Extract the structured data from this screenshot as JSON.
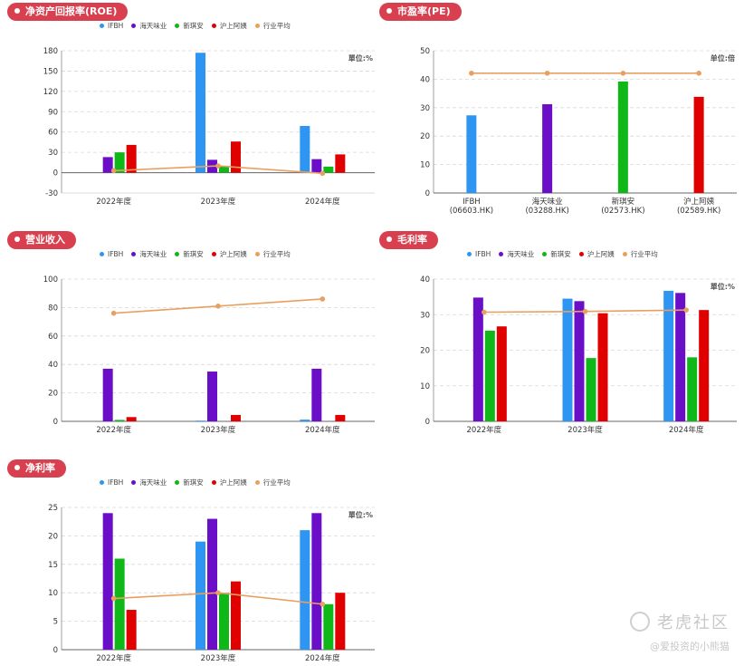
{
  "colors": {
    "IFBH": "#2f95f2",
    "haitian": "#6a0fc7",
    "xinqian": "#10b719",
    "hushang": "#e00000",
    "avg": "#e8a060",
    "title_bg": "#d9404f"
  },
  "legend": [
    "IFBH",
    "海天味业",
    "新琪安",
    "沪上阿姨",
    "行业平均"
  ],
  "watermark": {
    "brand": "老虎社区",
    "user": "@爱投资的小熊猫"
  },
  "chart_data": [
    {
      "id": "roe",
      "type": "bar",
      "title": "净资产回报率(ROE)",
      "unit": "單位:%",
      "categories": [
        "2022年度",
        "2023年度",
        "2024年度"
      ],
      "ylim": [
        -30,
        180
      ],
      "yticks": [
        -30,
        0,
        30,
        60,
        90,
        120,
        150,
        180
      ],
      "series": [
        {
          "name": "IFBH",
          "values": [
            null,
            177,
            69
          ]
        },
        {
          "name": "海天味业",
          "values": [
            23,
            19,
            20
          ]
        },
        {
          "name": "新琪安",
          "values": [
            30,
            10,
            9
          ]
        },
        {
          "name": "沪上阿姨",
          "values": [
            41,
            46,
            27
          ]
        }
      ],
      "line": {
        "name": "行业平均",
        "values": [
          3,
          10,
          -1
        ]
      }
    },
    {
      "id": "pe",
      "type": "bar",
      "title": "市盈率(PE)",
      "unit": "单位:倍",
      "categories": [
        "IFBH\n(06603.HK)",
        "海天味业\n(03288.HK)",
        "新琪安\n(02573.HK)",
        "沪上阿姨\n(02589.HK)"
      ],
      "ylim": [
        0,
        50
      ],
      "yticks": [
        0,
        10,
        20,
        30,
        40,
        50
      ],
      "bars": [
        27.3,
        31.2,
        39.2,
        33.8
      ],
      "line": {
        "name": "行业平均",
        "values": [
          42.1,
          42.1,
          42.1,
          42.1
        ]
      }
    },
    {
      "id": "revenue",
      "type": "bar",
      "title": "营业收入",
      "categories": [
        "2022年度",
        "2023年度",
        "2024年度"
      ],
      "ylim": [
        0,
        100
      ],
      "yticks": [
        0,
        20,
        40,
        60,
        80,
        100
      ],
      "series": [
        {
          "name": "IFBH",
          "values": [
            null,
            0.5,
            1.2
          ]
        },
        {
          "name": "海天味业",
          "values": [
            37,
            35,
            37
          ]
        },
        {
          "name": "新琪安",
          "values": [
            1,
            null,
            null
          ]
        },
        {
          "name": "沪上阿姨",
          "values": [
            3,
            4.5,
            4.5
          ]
        }
      ],
      "line": {
        "name": "行业平均",
        "values": [
          76,
          81,
          86
        ]
      }
    },
    {
      "id": "gross",
      "type": "bar",
      "title": "毛利率",
      "unit": "單位:%",
      "categories": [
        "2022年度",
        "2023年度",
        "2024年度"
      ],
      "ylim": [
        0,
        40
      ],
      "yticks": [
        0,
        10,
        20,
        30,
        40
      ],
      "series": [
        {
          "name": "IFBH",
          "values": [
            null,
            34.5,
            36.7
          ]
        },
        {
          "name": "海天味业",
          "values": [
            34.8,
            33.8,
            36.1
          ]
        },
        {
          "name": "新琪安",
          "values": [
            25.5,
            17.8,
            18
          ]
        },
        {
          "name": "沪上阿姨",
          "values": [
            26.7,
            30.4,
            31.3
          ]
        }
      ],
      "line": {
        "name": "行业平均",
        "values": [
          30.7,
          30.9,
          31.3
        ]
      }
    },
    {
      "id": "net",
      "type": "bar",
      "title": "净利率",
      "unit": "單位:%",
      "categories": [
        "2022年度",
        "2023年度",
        "2024年度"
      ],
      "ylim": [
        0,
        25
      ],
      "yticks": [
        0,
        5,
        10,
        15,
        20,
        25
      ],
      "series": [
        {
          "name": "IFBH",
          "values": [
            null,
            19,
            21
          ]
        },
        {
          "name": "海天味业",
          "values": [
            24,
            23,
            24
          ]
        },
        {
          "name": "新琪安",
          "values": [
            16,
            10,
            8
          ]
        },
        {
          "name": "沪上阿姨",
          "values": [
            7,
            12,
            10
          ]
        }
      ],
      "line": {
        "name": "行业平均",
        "values": [
          9,
          10,
          8
        ]
      }
    }
  ]
}
